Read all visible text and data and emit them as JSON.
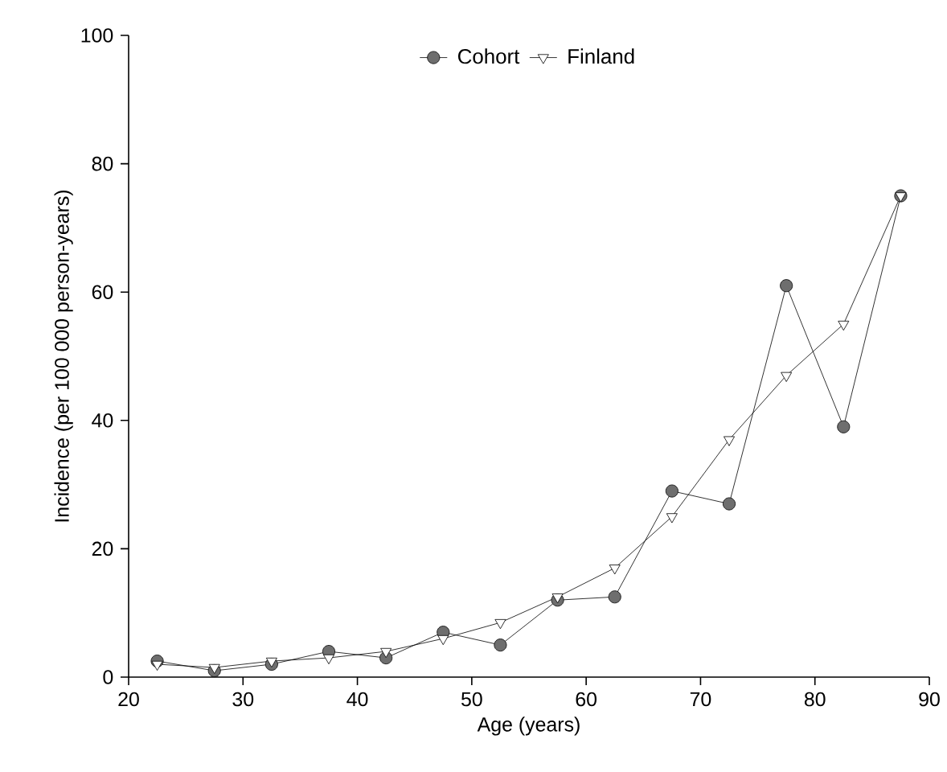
{
  "chart_data": {
    "type": "line",
    "xlabel": "Age (years)",
    "ylabel": "Incidence (per 100 000 person-years)",
    "x": [
      22.5,
      27.5,
      32.5,
      37.5,
      42.5,
      47.5,
      52.5,
      57.5,
      62.5,
      67.5,
      72.5,
      77.5,
      82.5,
      87.5
    ],
    "series": [
      {
        "name": "Cohort",
        "color": "#6e6e6e",
        "marker": "circle",
        "values": [
          2.5,
          1,
          2,
          4,
          3,
          7,
          5,
          12,
          12.5,
          29,
          27,
          61,
          39,
          75
        ]
      },
      {
        "name": "Finland",
        "color": "#ffffff",
        "marker": "triangle",
        "values": [
          2,
          1.5,
          2.5,
          3,
          4,
          6,
          8.5,
          12.5,
          17,
          25,
          37,
          47,
          55,
          75
        ]
      }
    ],
    "xlim": [
      20,
      90
    ],
    "ylim": [
      0,
      100
    ],
    "xticks": [
      20,
      30,
      40,
      50,
      60,
      70,
      80,
      90
    ],
    "yticks": [
      0,
      20,
      40,
      60,
      80,
      100
    ],
    "legend": "top",
    "grid": false,
    "line_style": "solid"
  }
}
